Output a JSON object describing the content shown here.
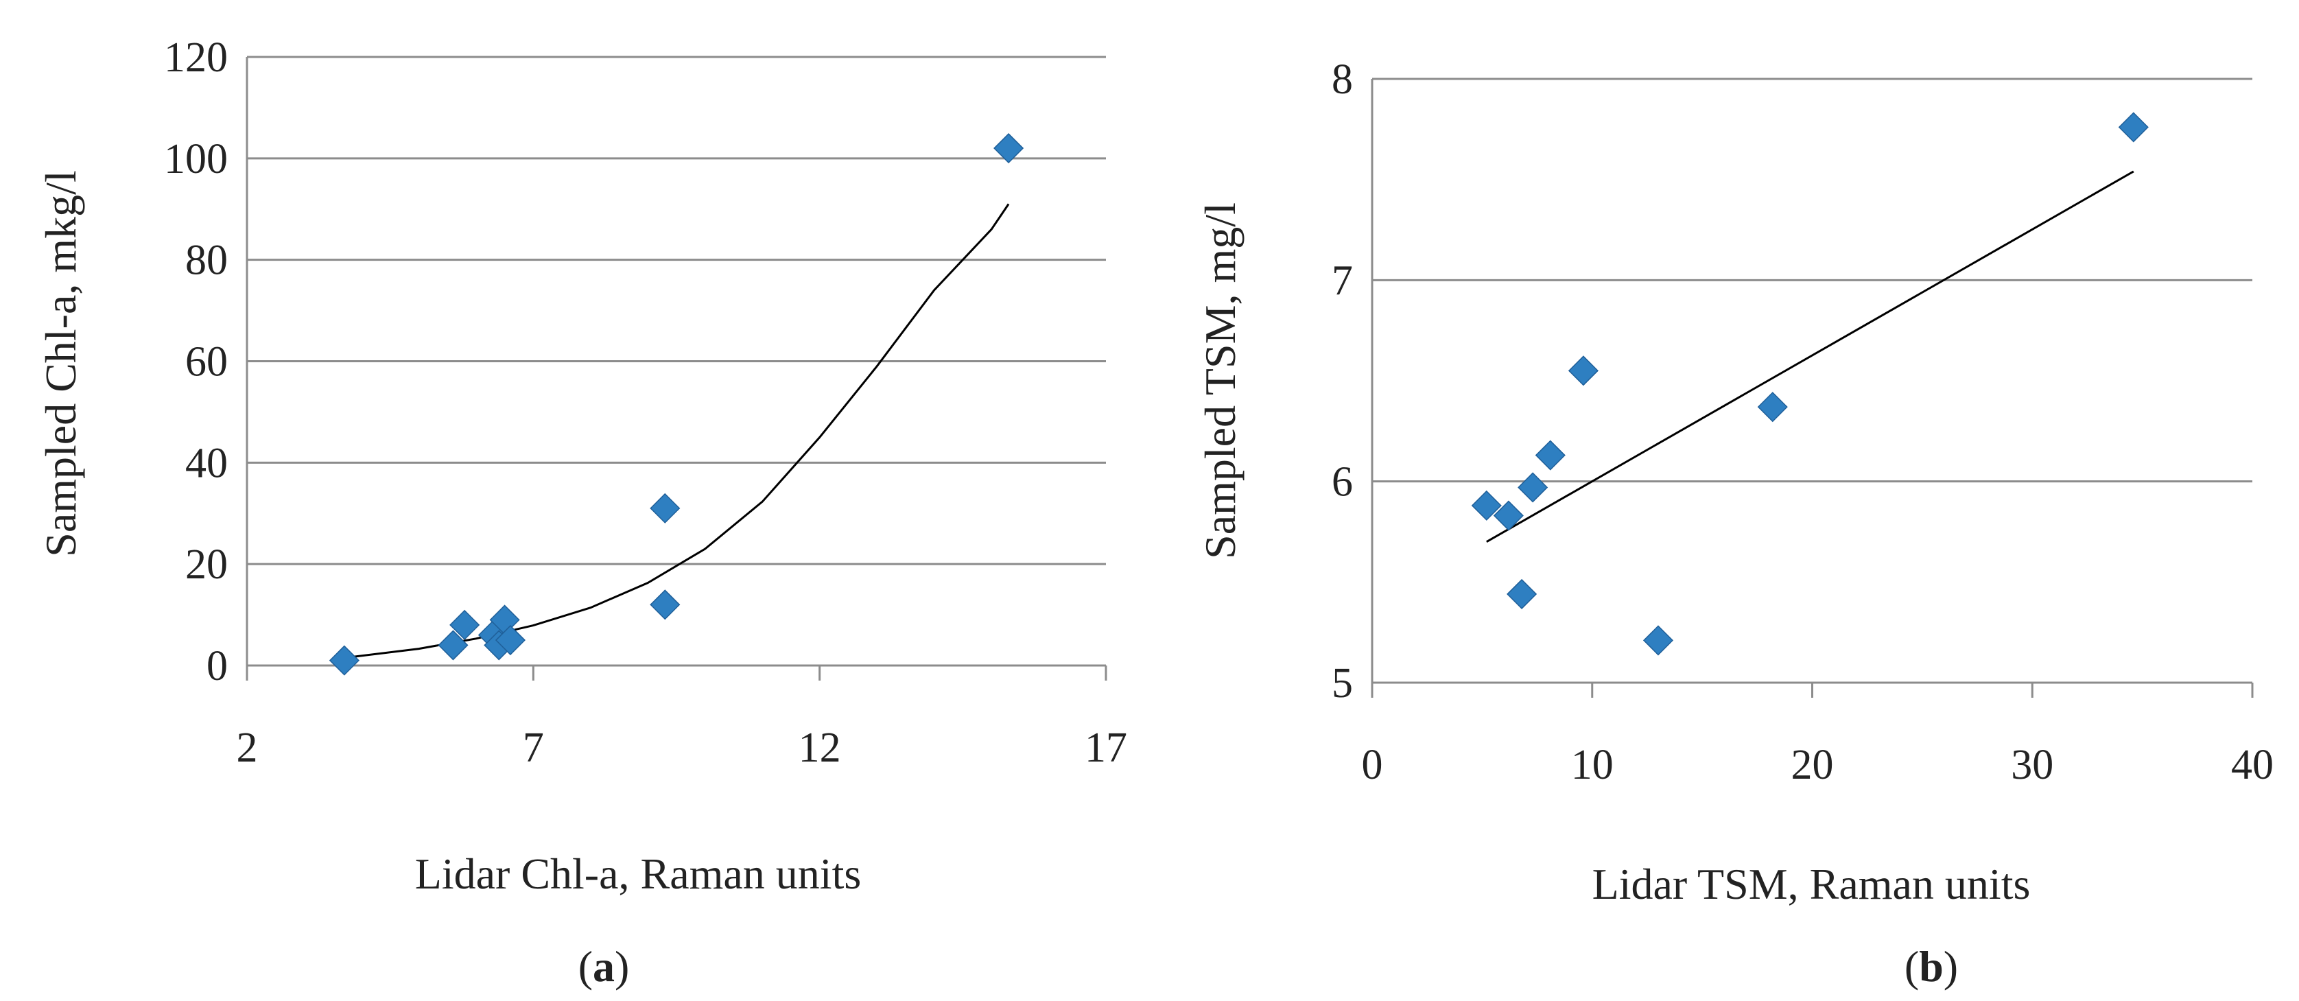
{
  "colors": {
    "marker": "#2E7FC1",
    "marker_edge": "#1F5F99",
    "gridline": "#8c8c8c",
    "trendline": "#000000",
    "text": "#222222"
  },
  "chart_data": [
    {
      "type": "scatter",
      "panel_label": {
        "open": "(",
        "letter": "a",
        "close": ")"
      },
      "xlabel": "Lidar Chl-a, Raman units",
      "ylabel": "Sampled Chl-a, mkg/l",
      "xlim": [
        2,
        17
      ],
      "ylim": [
        0,
        120
      ],
      "x_ticks": [
        "2",
        "7",
        "12",
        "17"
      ],
      "y_ticks": [
        "0",
        "20",
        "40",
        "60",
        "80",
        "100",
        "120"
      ],
      "grid": "horizontal",
      "marker": "diamond",
      "points": [
        {
          "x": 3.7,
          "y": 1
        },
        {
          "x": 5.6,
          "y": 4
        },
        {
          "x": 5.8,
          "y": 8
        },
        {
          "x": 6.3,
          "y": 6
        },
        {
          "x": 6.4,
          "y": 4
        },
        {
          "x": 6.5,
          "y": 9
        },
        {
          "x": 6.6,
          "y": 5
        },
        {
          "x": 9.3,
          "y": 31
        },
        {
          "x": 9.3,
          "y": 12
        },
        {
          "x": 15.3,
          "y": 102
        }
      ],
      "trendline": {
        "type": "exponential",
        "x": [
          3.7,
          5.0,
          6.0,
          7.0,
          8.0,
          9.0,
          10.0,
          11.0,
          12.0,
          13.0,
          14.0,
          15.0,
          15.3
        ],
        "y": [
          1.5,
          3.3,
          5.3,
          7.9,
          11.4,
          16.3,
          23.0,
          32.3,
          45.0,
          59.0,
          74.0,
          86.0,
          91.0
        ]
      }
    },
    {
      "type": "scatter",
      "panel_label": {
        "open": "(",
        "letter": "b",
        "close": ")"
      },
      "xlabel": "Lidar TSM, Raman units",
      "ylabel": "Sampled TSM, mg/l",
      "xlim": [
        0,
        40
      ],
      "ylim": [
        5,
        8
      ],
      "x_ticks": [
        "0",
        "10",
        "20",
        "30",
        "40"
      ],
      "y_ticks": [
        "5",
        "6",
        "7",
        "8"
      ],
      "grid": "horizontal",
      "marker": "diamond",
      "points": [
        {
          "x": 5.2,
          "y": 5.88
        },
        {
          "x": 6.2,
          "y": 5.83
        },
        {
          "x": 6.8,
          "y": 5.44
        },
        {
          "x": 7.3,
          "y": 5.97
        },
        {
          "x": 8.1,
          "y": 6.13
        },
        {
          "x": 9.6,
          "y": 6.55
        },
        {
          "x": 13.0,
          "y": 5.21
        },
        {
          "x": 18.2,
          "y": 6.37
        },
        {
          "x": 34.6,
          "y": 7.76
        }
      ],
      "trendline": {
        "type": "linear",
        "x": [
          5.2,
          34.6
        ],
        "y": [
          5.7,
          7.54
        ]
      }
    }
  ]
}
